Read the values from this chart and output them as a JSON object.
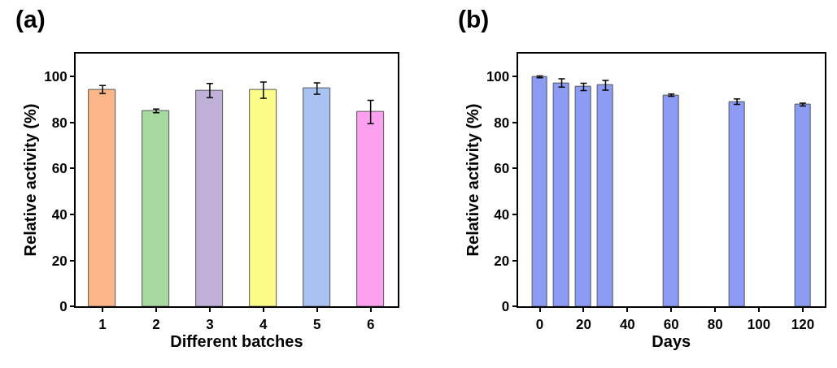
{
  "chart_data": [
    {
      "type": "bar",
      "title": "(a)",
      "xlabel": "Different batches",
      "ylabel": "Relative activity (%)",
      "categories": [
        "1",
        "2",
        "3",
        "4",
        "5",
        "6"
      ],
      "values": [
        94.3,
        85.0,
        93.8,
        94.0,
        94.7,
        84.5
      ],
      "errors": [
        1.7,
        0.8,
        3.1,
        3.5,
        2.5,
        5.1
      ],
      "colors": [
        "#fdb68a",
        "#a6d9a0",
        "#c0b0d8",
        "#fbfb88",
        "#a8c3f2",
        "#fca0ef"
      ],
      "ylim": [
        0,
        110
      ],
      "yticks": [
        0,
        20,
        40,
        60,
        80,
        100
      ]
    },
    {
      "type": "bar",
      "title": "(b)",
      "xlabel": "Days",
      "ylabel": "Relative activity (%)",
      "x": [
        0,
        10,
        20,
        30,
        60,
        90,
        120
      ],
      "values": [
        99.8,
        97.1,
        95.4,
        96.1,
        91.8,
        89.0,
        87.7
      ],
      "errors": [
        0.4,
        1.8,
        1.6,
        2.1,
        0.5,
        1.2,
        0.6
      ],
      "color": "#8c9cf5",
      "xlim": [
        -10,
        130
      ],
      "xticks": [
        0,
        20,
        40,
        60,
        80,
        100,
        120
      ],
      "ylim": [
        0,
        110
      ],
      "yticks": [
        0,
        20,
        40,
        60,
        80,
        100
      ]
    }
  ]
}
